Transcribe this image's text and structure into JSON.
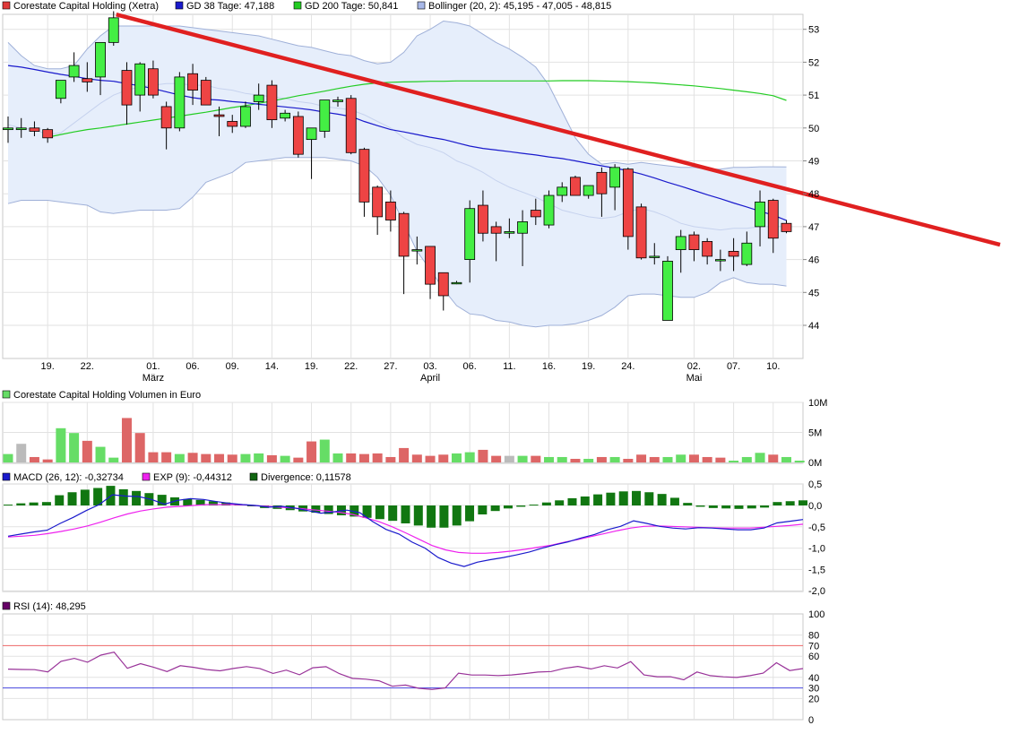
{
  "legend": {
    "main": [
      {
        "label": "Corestate Capital Holding (Xetra)",
        "color": "#e03a3a"
      },
      {
        "label": "GD 38 Tage: 47,188",
        "color": "#1a1acc"
      },
      {
        "label": "GD 200 Tage: 50,841",
        "color": "#22cc22"
      },
      {
        "label": "Bollinger (20, 2): 45,195 - 47,005 - 48,815",
        "color": "#a8b8e8"
      }
    ],
    "volume": {
      "label": "Corestate Capital Holding Volumen in Euro",
      "color": "#66dd66"
    },
    "macd": [
      {
        "label": "MACD (26, 12): -0,32734",
        "color": "#1a1acc"
      },
      {
        "label": "EXP (9): -0,44312",
        "color": "#ee22ee"
      },
      {
        "label": "Divergence: 0,11578",
        "color": "#116611"
      }
    ],
    "rsi": {
      "label": "RSI (14): 48,295",
      "color": "#660066"
    }
  },
  "chart_data": [
    {
      "type": "candlestick",
      "title": "Corestate Capital Holding (Xetra)",
      "y_ticks": [
        "44",
        "45",
        "46",
        "47",
        "48",
        "49",
        "50",
        "51",
        "52",
        "53"
      ],
      "ylim": [
        43.6,
        53.5
      ],
      "x_tick_labels": [
        {
          "i": 3,
          "label": "19."
        },
        {
          "i": 6,
          "label": "22."
        },
        {
          "i": 11,
          "label": "01."
        },
        {
          "i": 14,
          "label": "06."
        },
        {
          "i": 17,
          "label": "09."
        },
        {
          "i": 20,
          "label": "14."
        },
        {
          "i": 23,
          "label": "19."
        },
        {
          "i": 26,
          "label": "22."
        },
        {
          "i": 29,
          "label": "27."
        },
        {
          "i": 32,
          "label": "03."
        },
        {
          "i": 35,
          "label": "06."
        },
        {
          "i": 38,
          "label": "11."
        },
        {
          "i": 41,
          "label": "16."
        },
        {
          "i": 44,
          "label": "19."
        },
        {
          "i": 47,
          "label": "24."
        },
        {
          "i": 52,
          "label": "02."
        },
        {
          "i": 55,
          "label": "07."
        },
        {
          "i": 58,
          "label": "10."
        }
      ],
      "month_labels": [
        {
          "i": 11,
          "label": "März"
        },
        {
          "i": 32,
          "label": "April"
        },
        {
          "i": 52,
          "label": "Mai"
        }
      ],
      "candles": [
        {
          "o": 49.95,
          "h": 50.35,
          "l": 49.55,
          "c": 50.0
        },
        {
          "o": 49.95,
          "h": 50.3,
          "l": 49.7,
          "c": 50.0
        },
        {
          "o": 50.0,
          "h": 50.2,
          "l": 49.75,
          "c": 49.9
        },
        {
          "o": 49.95,
          "h": 50.0,
          "l": 49.55,
          "c": 49.7
        },
        {
          "o": 50.9,
          "h": 51.4,
          "l": 50.75,
          "c": 51.45
        },
        {
          "o": 51.55,
          "h": 52.3,
          "l": 51.4,
          "c": 51.9
        },
        {
          "o": 51.5,
          "h": 52.0,
          "l": 51.1,
          "c": 51.4
        },
        {
          "o": 51.55,
          "h": 52.6,
          "l": 51.0,
          "c": 52.6
        },
        {
          "o": 52.6,
          "h": 53.55,
          "l": 52.5,
          "c": 53.35
        },
        {
          "o": 51.75,
          "h": 52.0,
          "l": 50.1,
          "c": 50.7
        },
        {
          "o": 51.0,
          "h": 52.0,
          "l": 50.5,
          "c": 51.95
        },
        {
          "o": 51.8,
          "h": 52.05,
          "l": 50.9,
          "c": 51.0
        },
        {
          "o": 50.65,
          "h": 50.8,
          "l": 49.35,
          "c": 50.0
        },
        {
          "o": 50.0,
          "h": 51.7,
          "l": 49.9,
          "c": 51.55
        },
        {
          "o": 51.65,
          "h": 51.95,
          "l": 50.7,
          "c": 51.15
        },
        {
          "o": 51.45,
          "h": 51.55,
          "l": 50.7,
          "c": 50.7
        },
        {
          "o": 50.4,
          "h": 50.65,
          "l": 49.75,
          "c": 50.35
        },
        {
          "o": 50.2,
          "h": 50.4,
          "l": 49.85,
          "c": 50.05
        },
        {
          "o": 50.05,
          "h": 50.8,
          "l": 50.0,
          "c": 50.65
        },
        {
          "o": 50.8,
          "h": 51.35,
          "l": 50.55,
          "c": 51.0
        },
        {
          "o": 51.3,
          "h": 51.45,
          "l": 50.0,
          "c": 50.25
        },
        {
          "o": 50.3,
          "h": 50.55,
          "l": 50.2,
          "c": 50.45
        },
        {
          "o": 50.35,
          "h": 50.5,
          "l": 49.1,
          "c": 49.2
        },
        {
          "o": 49.65,
          "h": 50.0,
          "l": 48.45,
          "c": 50.0
        },
        {
          "o": 49.9,
          "h": 50.8,
          "l": 49.7,
          "c": 50.85
        },
        {
          "o": 50.8,
          "h": 50.95,
          "l": 50.65,
          "c": 50.85
        },
        {
          "o": 50.9,
          "h": 51.0,
          "l": 49.2,
          "c": 49.25
        },
        {
          "o": 49.35,
          "h": 49.4,
          "l": 47.3,
          "c": 47.75
        },
        {
          "o": 48.2,
          "h": 48.25,
          "l": 46.75,
          "c": 47.3
        },
        {
          "o": 47.75,
          "h": 48.1,
          "l": 46.85,
          "c": 47.2
        },
        {
          "o": 47.4,
          "h": 47.45,
          "l": 44.95,
          "c": 46.1
        },
        {
          "o": 46.3,
          "h": 46.7,
          "l": 45.85,
          "c": 46.3
        },
        {
          "o": 46.4,
          "h": 46.4,
          "l": 44.8,
          "c": 45.25
        },
        {
          "o": 45.6,
          "h": 45.6,
          "l": 44.45,
          "c": 44.9
        },
        {
          "o": 45.3,
          "h": 45.35,
          "l": 45.25,
          "c": 45.3
        },
        {
          "o": 46.0,
          "h": 47.8,
          "l": 45.3,
          "c": 47.55
        },
        {
          "o": 47.65,
          "h": 48.1,
          "l": 46.55,
          "c": 46.8
        },
        {
          "o": 47.0,
          "h": 47.15,
          "l": 45.95,
          "c": 46.8
        },
        {
          "o": 46.8,
          "h": 47.25,
          "l": 46.65,
          "c": 46.85
        },
        {
          "o": 46.8,
          "h": 47.5,
          "l": 45.8,
          "c": 47.15
        },
        {
          "o": 47.5,
          "h": 47.85,
          "l": 47.05,
          "c": 47.3
        },
        {
          "o": 47.05,
          "h": 48.1,
          "l": 46.95,
          "c": 47.95
        },
        {
          "o": 47.95,
          "h": 48.35,
          "l": 47.75,
          "c": 48.2
        },
        {
          "o": 48.5,
          "h": 48.55,
          "l": 47.95,
          "c": 47.95
        },
        {
          "o": 47.95,
          "h": 48.2,
          "l": 47.85,
          "c": 48.25
        },
        {
          "o": 48.65,
          "h": 48.8,
          "l": 47.3,
          "c": 48.0
        },
        {
          "o": 48.2,
          "h": 48.9,
          "l": 47.5,
          "c": 48.8
        },
        {
          "o": 48.75,
          "h": 48.8,
          "l": 46.3,
          "c": 46.7
        },
        {
          "o": 47.6,
          "h": 47.7,
          "l": 46.0,
          "c": 46.05
        },
        {
          "o": 46.1,
          "h": 46.5,
          "l": 45.85,
          "c": 46.1
        },
        {
          "o": 44.15,
          "h": 46.1,
          "l": 44.15,
          "c": 45.95
        },
        {
          "o": 46.3,
          "h": 46.9,
          "l": 45.6,
          "c": 46.7
        },
        {
          "o": 46.75,
          "h": 46.85,
          "l": 45.95,
          "c": 46.3
        },
        {
          "o": 46.55,
          "h": 46.65,
          "l": 45.85,
          "c": 46.1
        },
        {
          "o": 46.0,
          "h": 46.3,
          "l": 45.65,
          "c": 46.0
        },
        {
          "o": 46.25,
          "h": 46.65,
          "l": 45.65,
          "c": 46.1
        },
        {
          "o": 45.85,
          "h": 46.85,
          "l": 45.8,
          "c": 46.5
        },
        {
          "o": 47.0,
          "h": 48.1,
          "l": 46.4,
          "c": 47.75
        },
        {
          "o": 47.8,
          "h": 47.85,
          "l": 46.2,
          "c": 46.65
        },
        {
          "o": 47.1,
          "h": 47.2,
          "l": 46.8,
          "c": 46.85
        }
      ],
      "gd38": [
        51.9,
        51.85,
        51.78,
        51.7,
        51.63,
        51.57,
        51.5,
        51.45,
        51.42,
        51.35,
        51.28,
        51.2,
        51.1,
        51.0,
        50.92,
        50.87,
        50.85,
        50.8,
        50.77,
        50.72,
        50.68,
        50.64,
        50.6,
        50.55,
        50.48,
        50.42,
        50.35,
        50.2,
        50.07,
        49.95,
        49.88,
        49.8,
        49.72,
        49.65,
        49.55,
        49.45,
        49.38,
        49.33,
        49.28,
        49.23,
        49.18,
        49.12,
        49.07,
        49.0,
        48.92,
        48.85,
        48.78,
        48.7,
        48.6,
        48.48,
        48.35,
        48.23,
        48.1,
        47.97,
        47.85,
        47.72,
        47.6,
        47.47,
        47.35,
        47.19
      ],
      "gd200": [
        null,
        null,
        null,
        49.72,
        49.8,
        49.88,
        49.95,
        50.0,
        50.06,
        50.12,
        50.18,
        50.24,
        50.3,
        50.36,
        50.42,
        50.48,
        50.55,
        50.62,
        50.68,
        50.75,
        50.82,
        50.9,
        50.98,
        51.05,
        51.12,
        51.2,
        51.27,
        51.33,
        51.37,
        51.39,
        51.4,
        51.41,
        51.42,
        51.42,
        51.43,
        51.43,
        51.43,
        51.43,
        51.43,
        51.43,
        51.43,
        51.43,
        51.44,
        51.44,
        51.44,
        51.43,
        51.42,
        51.41,
        51.39,
        51.37,
        51.34,
        51.31,
        51.28,
        51.24,
        51.2,
        51.15,
        51.1,
        51.05,
        50.98,
        50.84
      ],
      "bb_upper": [
        52.6,
        52.2,
        51.9,
        51.8,
        51.8,
        51.9,
        52.4,
        52.8,
        53.1,
        53.1,
        53.1,
        53.1,
        53.1,
        53.1,
        53.05,
        53.0,
        52.95,
        52.9,
        52.85,
        52.8,
        52.7,
        52.6,
        52.5,
        52.45,
        52.35,
        52.25,
        52.2,
        52.05,
        51.95,
        52.0,
        52.3,
        52.8,
        53.0,
        53.25,
        53.2,
        53.1,
        52.85,
        52.6,
        52.4,
        52.15,
        51.85,
        51.3,
        50.5,
        49.7,
        49.2,
        48.9,
        48.95,
        48.9,
        48.95,
        48.9,
        48.85,
        48.8,
        48.8,
        48.75,
        48.75,
        48.8,
        48.8,
        48.82,
        48.82,
        48.815
      ],
      "bb_lower": [
        47.7,
        47.8,
        47.8,
        47.8,
        47.75,
        47.7,
        47.65,
        47.45,
        47.4,
        47.45,
        47.5,
        47.5,
        47.5,
        47.55,
        47.9,
        48.35,
        48.5,
        48.65,
        48.95,
        49.0,
        49.05,
        49.1,
        49.1,
        49.1,
        49.1,
        49.05,
        49.0,
        48.85,
        48.5,
        47.95,
        47.1,
        46.25,
        45.7,
        45.1,
        44.6,
        44.35,
        44.3,
        44.15,
        44.1,
        44.0,
        43.95,
        44.0,
        44.0,
        44.05,
        44.15,
        44.3,
        44.55,
        44.9,
        44.95,
        44.95,
        44.9,
        44.85,
        44.85,
        45.0,
        45.3,
        45.45,
        45.3,
        45.25,
        45.25,
        45.195
      ],
      "bb_mid": [
        50.1,
        50.0,
        49.95,
        49.8,
        49.85,
        50.15,
        50.45,
        50.75,
        51.0,
        51.15,
        51.25,
        51.3,
        51.35,
        51.35,
        51.3,
        51.3,
        51.2,
        51.15,
        51.05,
        51.0,
        50.95,
        50.9,
        50.8,
        50.75,
        50.65,
        50.6,
        50.55,
        50.4,
        50.2,
        50.0,
        49.7,
        49.5,
        49.4,
        49.25,
        49.0,
        48.85,
        48.65,
        48.4,
        48.2,
        48.05,
        47.9,
        47.7,
        47.5,
        47.4,
        47.3,
        47.25,
        47.3,
        47.45,
        47.55,
        47.45,
        47.3,
        47.1,
        47.0,
        46.95,
        46.9,
        46.95,
        46.95,
        47.0,
        47.0,
        47.005
      ],
      "trendline": {
        "x1": 8.2,
        "y1": 53.45,
        "x2": 75.2,
        "y2": 46.45,
        "color": "#e02020"
      }
    },
    {
      "type": "bar",
      "title": "Corestate Capital Holding Volumen in Euro",
      "y_ticks": [
        "0M",
        "5M",
        "10M"
      ],
      "ylim": [
        0,
        10
      ],
      "values": [
        1.4,
        3.1,
        0.9,
        0.5,
        5.7,
        4.9,
        3.6,
        2.6,
        0.8,
        7.4,
        4.9,
        1.7,
        1.7,
        1.4,
        1.6,
        1.4,
        1.4,
        1.3,
        1.4,
        1.5,
        1.2,
        1.1,
        0.8,
        3.5,
        3.8,
        1.5,
        1.5,
        1.4,
        1.5,
        0.9,
        2.4,
        1.3,
        1.1,
        1.3,
        1.5,
        1.7,
        2.1,
        1.1,
        1.1,
        1.1,
        1.1,
        0.9,
        0.9,
        0.6,
        0.6,
        0.9,
        0.9,
        0.6,
        1.3,
        0.9,
        0.9,
        1.3,
        1.3,
        0.9,
        0.8,
        0.3,
        0.9,
        1.6,
        1.3,
        0.9,
        0.3
      ],
      "colors": [
        "g",
        "s",
        "r",
        "r",
        "g",
        "g",
        "r",
        "g",
        "g",
        "r",
        "r",
        "r",
        "r",
        "g",
        "r",
        "r",
        "r",
        "r",
        "g",
        "g",
        "r",
        "g",
        "r",
        "r",
        "g",
        "g",
        "r",
        "r",
        "r",
        "r",
        "r",
        "r",
        "r",
        "r",
        "g",
        "g",
        "r",
        "r",
        "s",
        "g",
        "r",
        "g",
        "g",
        "r",
        "g",
        "r",
        "g",
        "r",
        "r",
        "r",
        "g",
        "g",
        "r",
        "r",
        "r",
        "g",
        "g",
        "g",
        "r",
        "g"
      ]
    },
    {
      "type": "line",
      "title": "MACD",
      "y_ticks": [
        "0,5",
        "0,0",
        "-0,5",
        "-1,0",
        "-1,5",
        "-2,0"
      ],
      "ylim": [
        -2.0,
        0.5
      ],
      "macd": [
        -0.72,
        -0.67,
        -0.62,
        -0.58,
        -0.42,
        -0.28,
        -0.12,
        0.02,
        0.25,
        0.22,
        0.21,
        0.14,
        0.03,
        0.12,
        0.16,
        0.14,
        0.09,
        0.05,
        0.02,
        0.0,
        -0.04,
        -0.02,
        -0.06,
        -0.12,
        -0.18,
        -0.15,
        -0.11,
        -0.17,
        -0.38,
        -0.56,
        -0.67,
        -0.86,
        -1.0,
        -1.22,
        -1.35,
        -1.43,
        -1.33,
        -1.27,
        -1.22,
        -1.16,
        -1.09,
        -1.0,
        -0.92,
        -0.85,
        -0.76,
        -0.68,
        -0.57,
        -0.49,
        -0.36,
        -0.42,
        -0.49,
        -0.53,
        -0.55,
        -0.52,
        -0.53,
        -0.55,
        -0.57,
        -0.57,
        -0.53,
        -0.41,
        -0.37,
        -0.33
      ],
      "exp": [
        -0.74,
        -0.72,
        -0.7,
        -0.66,
        -0.61,
        -0.55,
        -0.48,
        -0.39,
        -0.29,
        -0.2,
        -0.13,
        -0.08,
        -0.04,
        -0.02,
        0.0,
        0.02,
        0.02,
        0.02,
        0.01,
        -0.01,
        -0.03,
        -0.05,
        -0.07,
        -0.1,
        -0.13,
        -0.16,
        -0.21,
        -0.29,
        -0.38,
        -0.5,
        -0.64,
        -0.79,
        -0.94,
        -1.04,
        -1.1,
        -1.12,
        -1.12,
        -1.1,
        -1.07,
        -1.03,
        -0.98,
        -0.93,
        -0.86,
        -0.8,
        -0.73,
        -0.66,
        -0.59,
        -0.53,
        -0.49,
        -0.48,
        -0.49,
        -0.5,
        -0.51,
        -0.52,
        -0.53,
        -0.53,
        -0.53,
        -0.51,
        -0.49,
        -0.47,
        -0.44
      ],
      "divergence": [
        0.02,
        0.05,
        0.07,
        0.08,
        0.24,
        0.31,
        0.37,
        0.41,
        0.46,
        0.38,
        0.34,
        0.29,
        0.25,
        0.19,
        0.15,
        0.13,
        0.1,
        0.07,
        0.03,
        -0.02,
        -0.06,
        -0.08,
        -0.11,
        -0.14,
        -0.17,
        -0.2,
        -0.23,
        -0.26,
        -0.29,
        -0.32,
        -0.36,
        -0.42,
        -0.47,
        -0.52,
        -0.52,
        -0.47,
        -0.37,
        -0.21,
        -0.13,
        -0.07,
        -0.03,
        0.02,
        0.07,
        0.12,
        0.17,
        0.21,
        0.26,
        0.3,
        0.33,
        0.34,
        0.31,
        0.27,
        0.18,
        0.06,
        -0.03,
        -0.06,
        -0.07,
        -0.08,
        -0.07,
        -0.05,
        0.08,
        0.1,
        0.12
      ]
    },
    {
      "type": "line",
      "title": "RSI (14)",
      "y_ticks": [
        "100",
        "80",
        "70",
        "60",
        "40",
        "30",
        "20",
        "0"
      ],
      "ylim": [
        0,
        100
      ],
      "ref_lines": [
        70,
        30
      ],
      "values": [
        47.8,
        47.5,
        47.3,
        45.2,
        55.2,
        58.0,
        54.3,
        61.0,
        63.8,
        48.6,
        53.0,
        49.5,
        45.5,
        51.0,
        49.5,
        47.4,
        46.2,
        48.4,
        50.2,
        48.4,
        43.7,
        46.9,
        42.5,
        49.1,
        50.1,
        43.6,
        39.0,
        38.3,
        36.8,
        31.6,
        32.7,
        29.7,
        28.6,
        30.1,
        44.0,
        42.2,
        42.2,
        41.7,
        42.3,
        43.6,
        45.0,
        45.5,
        48.6,
        50.3,
        48.0,
        51.0,
        48.9,
        54.9,
        42.3,
        40.6,
        40.6,
        37.7,
        45.1,
        41.6,
        40.5,
        39.9,
        41.6,
        44.0,
        53.8,
        46.4,
        48.3
      ]
    }
  ]
}
